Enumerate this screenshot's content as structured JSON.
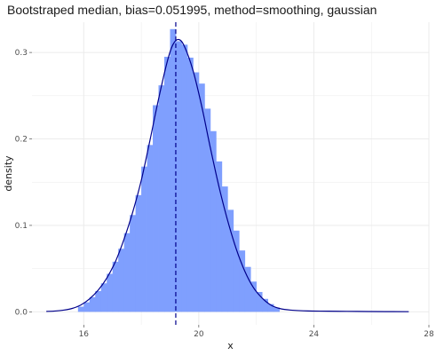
{
  "chart_data": {
    "type": "histogram+density",
    "title": "Bootstraped median, bias=0.051995, method=smoothing, gaussian",
    "xlabel": "x",
    "ylabel": "density",
    "xlim": [
      14.2,
      28.0
    ],
    "ylim": [
      -0.015,
      0.335
    ],
    "x_ticks": [
      16,
      20,
      24,
      28
    ],
    "x_tick_labels": [
      "16",
      "20",
      "24",
      "28"
    ],
    "y_ticks": [
      0.0,
      0.1,
      0.2,
      0.3
    ],
    "y_tick_labels": [
      "0.0",
      "0.1",
      "0.2",
      "0.3"
    ],
    "grid": true,
    "median_line_x": 19.2,
    "colors": {
      "bars": "#7f9ffe",
      "density_line": "#00008b",
      "median_line": "#00008b",
      "grid": "#ebebeb"
    },
    "histogram": {
      "bin_width": 0.2,
      "bins": [
        {
          "x0": 15.8,
          "density": 0.006
        },
        {
          "x0": 16.0,
          "density": 0.011
        },
        {
          "x0": 16.2,
          "density": 0.017
        },
        {
          "x0": 16.4,
          "density": 0.024
        },
        {
          "x0": 16.6,
          "density": 0.033
        },
        {
          "x0": 16.8,
          "density": 0.044
        },
        {
          "x0": 17.0,
          "density": 0.058
        },
        {
          "x0": 17.2,
          "density": 0.073
        },
        {
          "x0": 17.4,
          "density": 0.091
        },
        {
          "x0": 17.6,
          "density": 0.112
        },
        {
          "x0": 17.8,
          "density": 0.135
        },
        {
          "x0": 18.0,
          "density": 0.168
        },
        {
          "x0": 18.2,
          "density": 0.193
        },
        {
          "x0": 18.4,
          "density": 0.239
        },
        {
          "x0": 18.6,
          "density": 0.262
        },
        {
          "x0": 18.8,
          "density": 0.295
        },
        {
          "x0": 19.0,
          "density": 0.327
        },
        {
          "x0": 19.2,
          "density": 0.313
        },
        {
          "x0": 19.4,
          "density": 0.309
        },
        {
          "x0": 19.6,
          "density": 0.294
        },
        {
          "x0": 19.8,
          "density": 0.277
        },
        {
          "x0": 20.0,
          "density": 0.264
        },
        {
          "x0": 20.2,
          "density": 0.235
        },
        {
          "x0": 20.4,
          "density": 0.209
        },
        {
          "x0": 20.6,
          "density": 0.174
        },
        {
          "x0": 20.8,
          "density": 0.145
        },
        {
          "x0": 21.0,
          "density": 0.118
        },
        {
          "x0": 21.2,
          "density": 0.094
        },
        {
          "x0": 21.4,
          "density": 0.071
        },
        {
          "x0": 21.6,
          "density": 0.052
        },
        {
          "x0": 21.8,
          "density": 0.035
        },
        {
          "x0": 22.0,
          "density": 0.023
        },
        {
          "x0": 22.2,
          "density": 0.015
        },
        {
          "x0": 22.4,
          "density": 0.009
        },
        {
          "x0": 22.6,
          "density": 0.005
        }
      ]
    },
    "density_curve": {
      "x": [
        14.7,
        15.0,
        15.3,
        15.6,
        15.9,
        16.2,
        16.5,
        16.8,
        17.1,
        17.4,
        17.7,
        18.0,
        18.3,
        18.6,
        18.9,
        19.1,
        19.3,
        19.5,
        19.8,
        20.1,
        20.4,
        20.7,
        21.0,
        21.3,
        21.6,
        21.9,
        22.2,
        22.5,
        22.8,
        23.2,
        23.8,
        24.5,
        25.5,
        26.5,
        27.3
      ],
      "y": [
        0.0005,
        0.001,
        0.002,
        0.004,
        0.008,
        0.015,
        0.025,
        0.039,
        0.058,
        0.084,
        0.115,
        0.152,
        0.198,
        0.246,
        0.289,
        0.309,
        0.315,
        0.307,
        0.279,
        0.238,
        0.19,
        0.145,
        0.106,
        0.073,
        0.047,
        0.028,
        0.016,
        0.008,
        0.004,
        0.002,
        0.001,
        0.0008,
        0.0005,
        0.0003,
        0.0002
      ]
    }
  }
}
